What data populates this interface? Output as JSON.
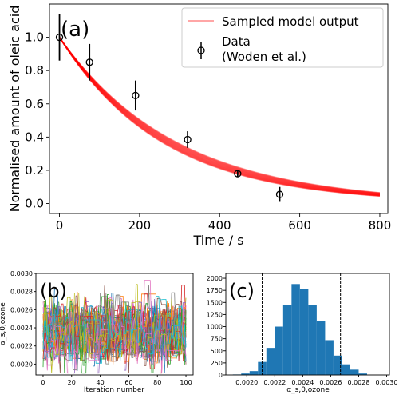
{
  "chart_data": [
    {
      "panel_label": "(a)",
      "type": "line",
      "xlabel": "Time / s",
      "ylabel": "Normalised amount of oleic acid",
      "xlim": [
        -25,
        820
      ],
      "ylim": [
        -0.06,
        1.2
      ],
      "xticks": [
        0,
        200,
        400,
        600,
        800
      ],
      "yticks": [
        0.0,
        0.2,
        0.4,
        0.6,
        0.8,
        1.0
      ],
      "ytick_labels": [
        "0.0",
        "0.2",
        "0.4",
        "0.6",
        "0.8",
        "1.0"
      ],
      "legend_position": "top-right",
      "model": {
        "name": "Sampled model output",
        "color": "#ff0000",
        "x_max": 800,
        "decay_rate_range": [
          0.0034,
          0.0039
        ]
      },
      "data": {
        "name": "Data",
        "name_line2": "(Woden et al.)",
        "x": [
          0,
          75,
          190,
          320,
          445,
          550
        ],
        "y": [
          1.0,
          0.85,
          0.65,
          0.385,
          0.18,
          0.055
        ],
        "err": [
          0.14,
          0.11,
          0.09,
          0.05,
          0.02,
          0.045
        ]
      }
    },
    {
      "panel_label": "(b)",
      "type": "line",
      "xlabel": "Iteration number",
      "ylabel": "α_s,0,ozone",
      "xlim": [
        -5,
        105
      ],
      "ylim": [
        0.00188,
        0.003
      ],
      "xticks": [
        0,
        20,
        40,
        60,
        80,
        100
      ],
      "yticks": [
        0.002,
        0.0022,
        0.0024,
        0.0026,
        0.0028,
        0.003
      ],
      "ytick_labels": [
        "0.0020",
        "0.0022",
        "0.0024",
        "0.0026",
        "0.0028",
        "0.0030"
      ],
      "trace_count": 60,
      "trace_mean": 0.00235,
      "trace_sd": 0.00016,
      "colors": [
        "#1f77b4",
        "#ff7f0e",
        "#2ca02c",
        "#d62728",
        "#9467bd",
        "#8c564b",
        "#e377c2",
        "#7f7f7f",
        "#bcbd22",
        "#17becf"
      ]
    },
    {
      "panel_label": "(c)",
      "type": "bar",
      "xlabel": "α_s,0,ozone",
      "xlim": [
        0.00185,
        0.00302
      ],
      "ylim": [
        0,
        2000
      ],
      "xticks": [
        0.002,
        0.0022,
        0.0024,
        0.0026,
        0.0028,
        0.003
      ],
      "xtick_labels": [
        "0.0020",
        "0.0022",
        "0.0024",
        "0.0026",
        "0.0028",
        "0.0030"
      ],
      "yticks": [
        0,
        250,
        500,
        750,
        1000,
        1250,
        1500,
        1750,
        2000
      ],
      "bin_edges": [
        0.0019,
        0.00196,
        0.00202,
        0.00208,
        0.00214,
        0.0022,
        0.00226,
        0.00232,
        0.00238,
        0.00244,
        0.0025,
        0.00256,
        0.00262,
        0.00268,
        0.00274,
        0.0028,
        0.00286
      ],
      "counts": [
        10,
        30,
        80,
        270,
        560,
        1000,
        1450,
        1880,
        1780,
        1450,
        1110,
        720,
        400,
        220,
        110,
        30
      ],
      "bar_color": "#1f77b4",
      "vlines": [
        0.00211,
        0.00267
      ]
    }
  ]
}
